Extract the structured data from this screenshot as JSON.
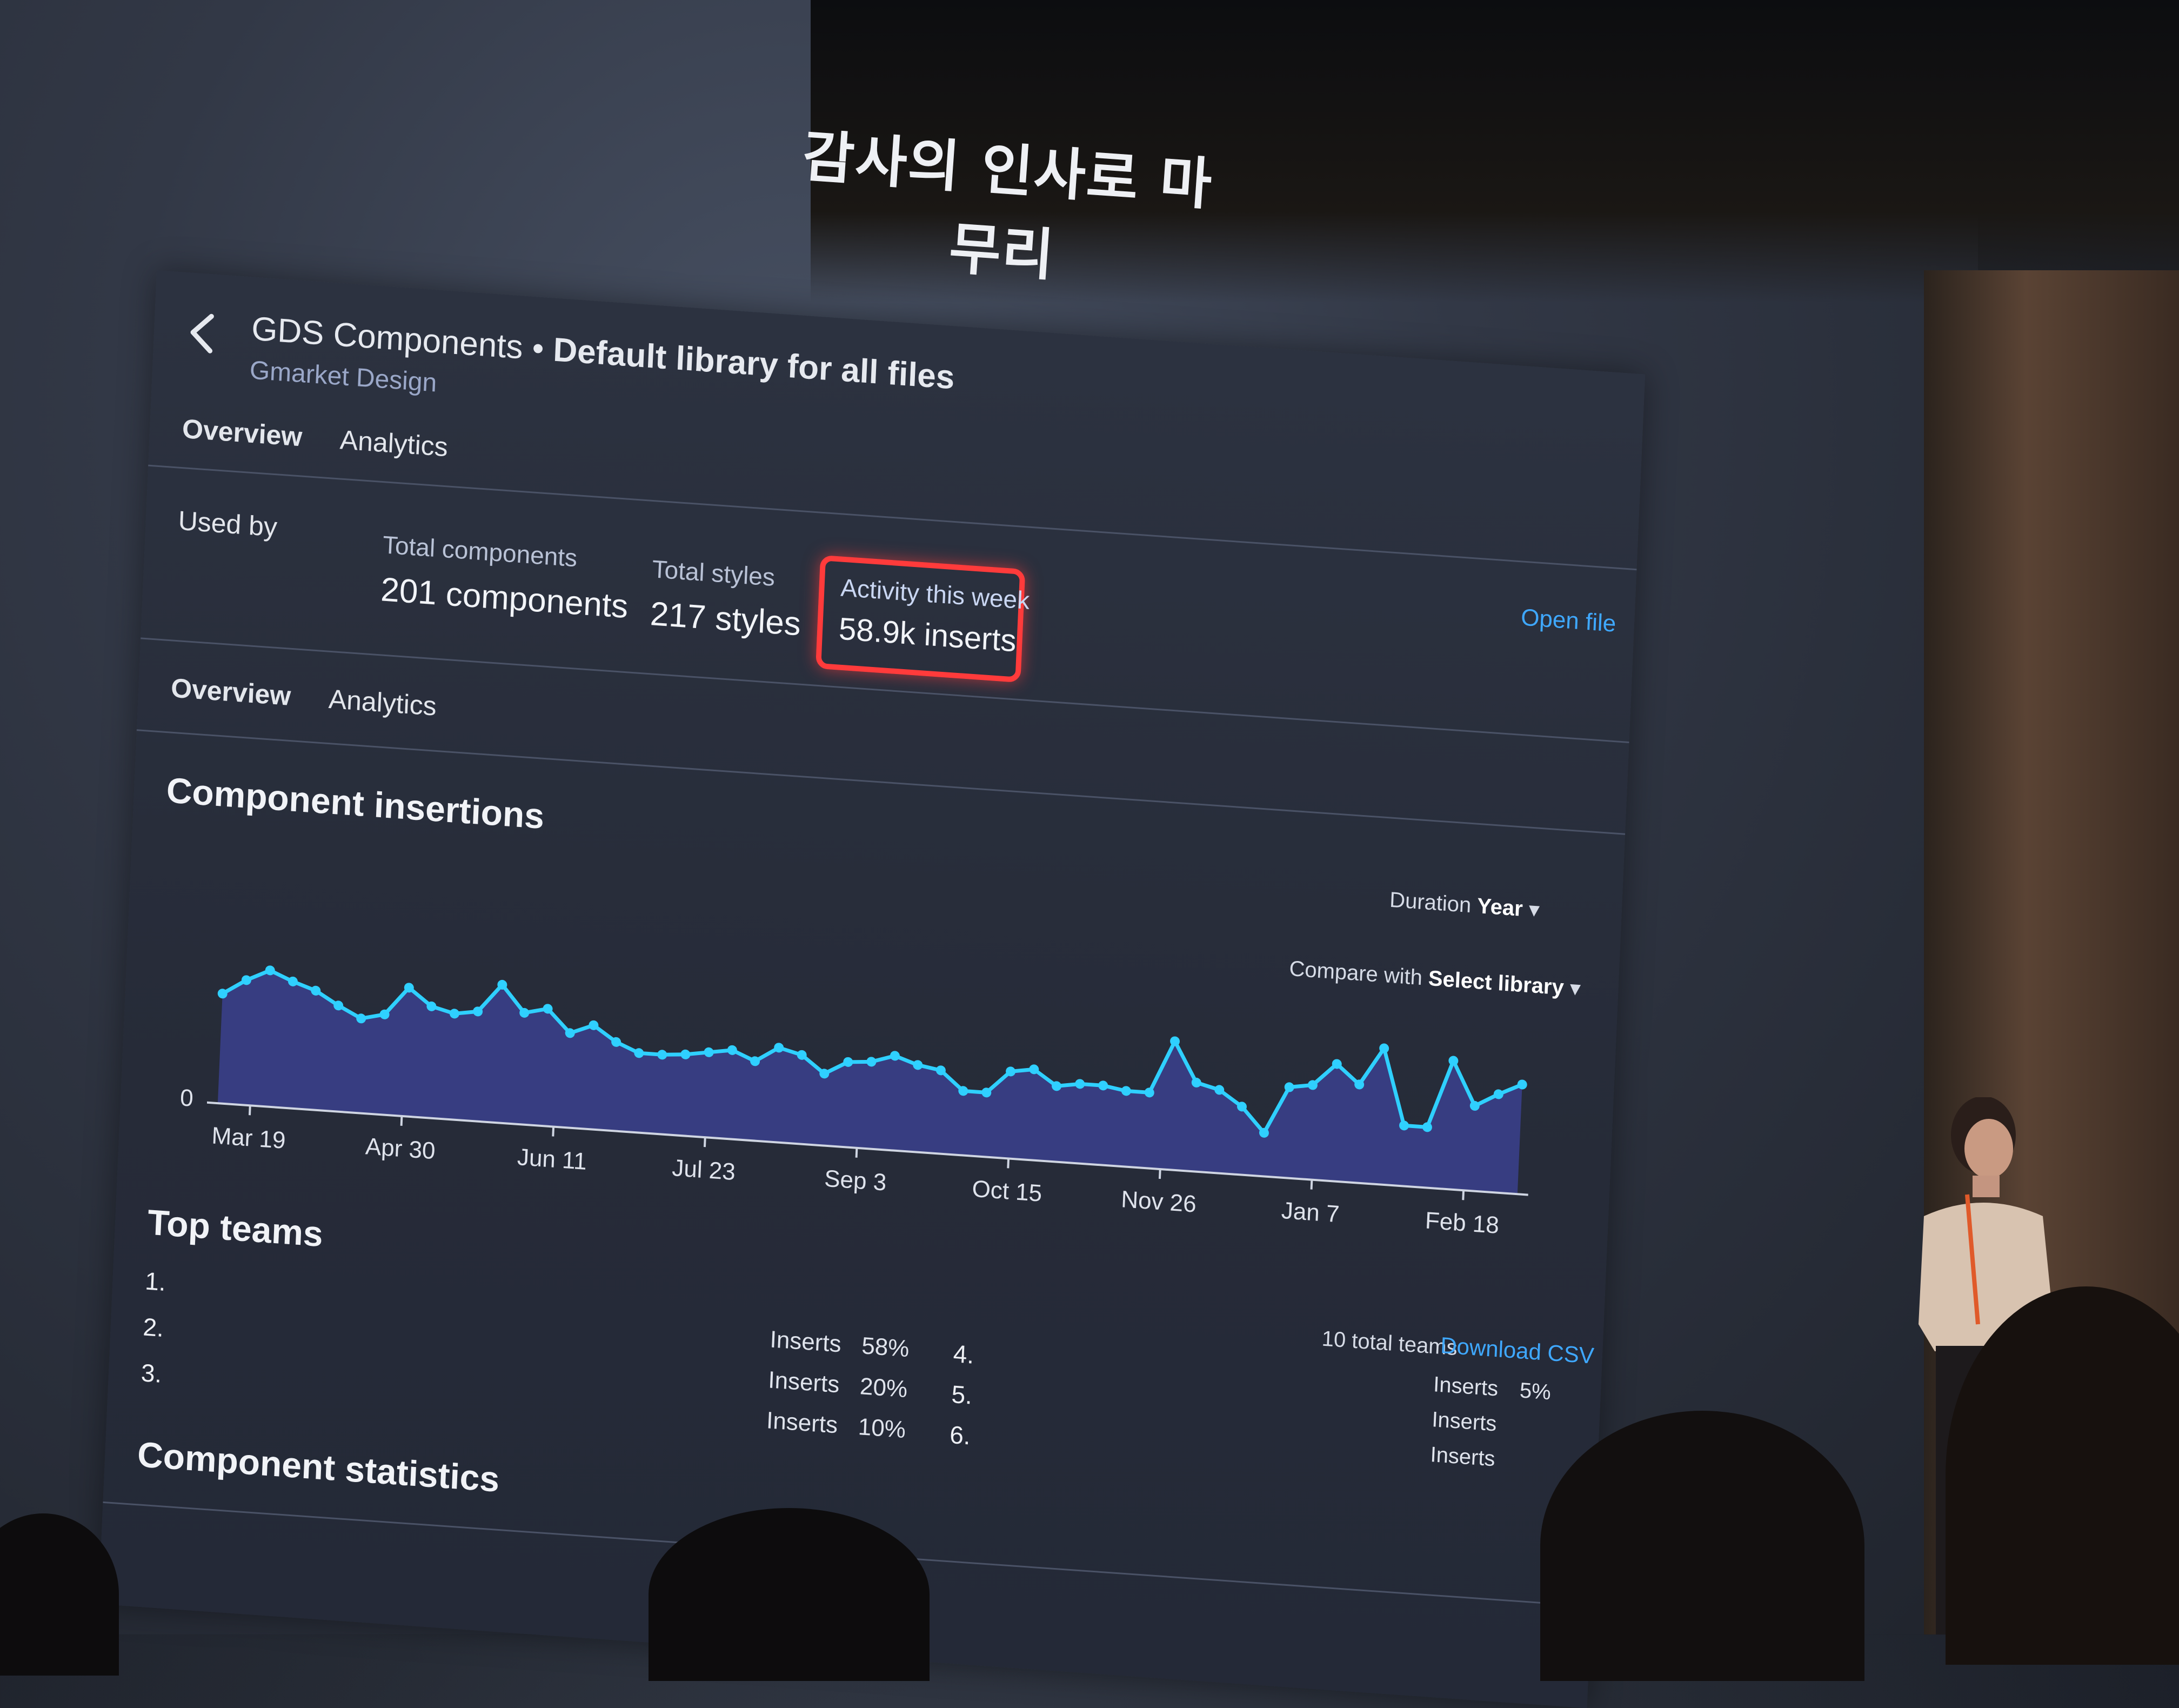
{
  "slide": {
    "title": "감사의 인사로 마무리"
  },
  "header": {
    "file_name": "GDS Components",
    "separator": "•",
    "description": "Default library for all files",
    "organization": "Gmarket Design"
  },
  "tabs_top": [
    {
      "label": "Overview"
    },
    {
      "label": "Analytics"
    }
  ],
  "summary": {
    "used_by_label": "Used by",
    "open_file_label": "Open file",
    "total_components_label": "Total components",
    "total_components_value": "201 components",
    "total_styles_label": "Total styles",
    "total_styles_value": "217 styles",
    "activity_label": "Activity this week",
    "activity_value": "58.9k inserts"
  },
  "tabs_bottom": [
    {
      "label": "Overview"
    },
    {
      "label": "Analytics"
    }
  ],
  "insertions": {
    "title": "Component insertions",
    "duration_label": "Duration",
    "duration_value": "Year",
    "compare_label": "Compare with",
    "compare_value": "Select library",
    "zero_label": "0"
  },
  "chart_data": {
    "type": "area",
    "x_ticks": [
      "Mar 19",
      "Apr 30",
      "Jun 11",
      "Jul 23",
      "Sep 3",
      "Oct 15",
      "Nov 26",
      "Jan 7",
      "Feb 18"
    ],
    "values": [
      58,
      66,
      72,
      67,
      63,
      56,
      50,
      53,
      68,
      59,
      56,
      58,
      73,
      59,
      62,
      50,
      55,
      47,
      42,
      42,
      43,
      45,
      47,
      42,
      50,
      47,
      38,
      45,
      46,
      50,
      46,
      44,
      34,
      34,
      46,
      48,
      40,
      42,
      42,
      40,
      40,
      68,
      47,
      44,
      36,
      23,
      48,
      50,
      62,
      52,
      72,
      32,
      32,
      68,
      45,
      52,
      58
    ],
    "ylim": [
      0,
      80
    ],
    "grid": false,
    "legend": "none",
    "line_color": "#2fd0ff",
    "fill_color": "#3a3f8a"
  },
  "top_teams": {
    "title": "Top teams",
    "total_label": "10 total teams",
    "download_label": "Download CSV",
    "rows_left": [
      {
        "rank": "1.",
        "metric": "",
        "pct": ""
      },
      {
        "rank": "2.",
        "metric": "Inserts",
        "pct": "58%"
      },
      {
        "rank": "3.",
        "metric": "Inserts",
        "pct": "20%"
      },
      {
        "rank": "",
        "metric": "Inserts",
        "pct": "10%"
      }
    ],
    "rows_right": [
      {
        "rank": "4.",
        "metric": "Inserts",
        "pct": "5%"
      },
      {
        "rank": "5.",
        "metric": "Inserts",
        "pct": ""
      },
      {
        "rank": "6.",
        "metric": "Inserts",
        "pct": ""
      }
    ]
  },
  "stats": {
    "title": "Component statistics"
  }
}
